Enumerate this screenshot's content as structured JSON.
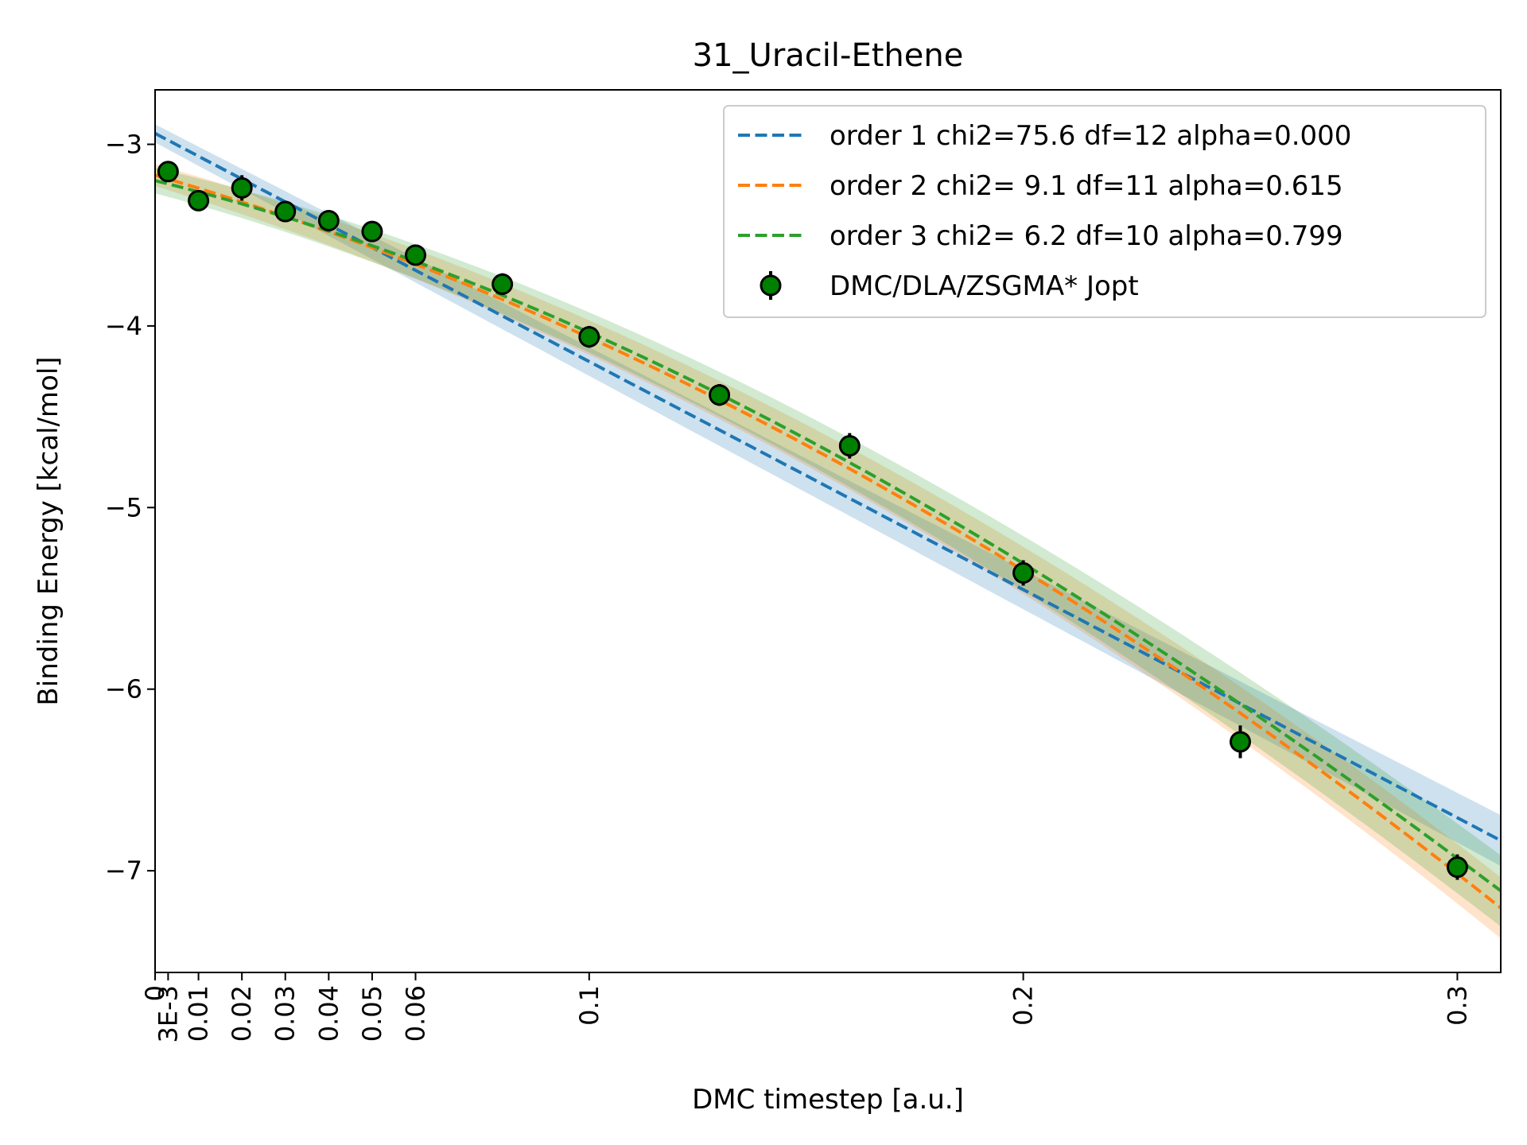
{
  "chart_data": {
    "type": "scatter",
    "title": "31_Uracil-Ethene",
    "xlabel": "DMC timestep [a.u.]",
    "ylabel": "Binding Energy [kcal/mol]",
    "xlim": [
      0,
      0.31
    ],
    "ylim": [
      -7.56,
      -2.7
    ],
    "x_ticks": [
      {
        "value": 0,
        "label": "0"
      },
      {
        "value": 0.003,
        "label": "3E-3"
      },
      {
        "value": 0.01,
        "label": "0.01"
      },
      {
        "value": 0.02,
        "label": "0.02"
      },
      {
        "value": 0.03,
        "label": "0.03"
      },
      {
        "value": 0.04,
        "label": "0.04"
      },
      {
        "value": 0.05,
        "label": "0.05"
      },
      {
        "value": 0.06,
        "label": "0.06"
      },
      {
        "value": 0.1,
        "label": "0.1"
      },
      {
        "value": 0.2,
        "label": "0.2"
      },
      {
        "value": 0.3,
        "label": "0.3"
      }
    ],
    "y_ticks": [
      {
        "value": -3,
        "label": "−3"
      },
      {
        "value": -4,
        "label": "−4"
      },
      {
        "value": -5,
        "label": "−5"
      },
      {
        "value": -6,
        "label": "−6"
      },
      {
        "value": -7,
        "label": "−7"
      }
    ],
    "grid": false,
    "legend_position": "top-right",
    "points": {
      "name": "DMC/DLA/ZSGMA* Jopt",
      "color": "#008000",
      "x": [
        0.003,
        0.01,
        0.02,
        0.03,
        0.04,
        0.05,
        0.06,
        0.08,
        0.1,
        0.13,
        0.16,
        0.2,
        0.25,
        0.3
      ],
      "y": [
        -3.15,
        -3.31,
        -3.24,
        -3.37,
        -3.42,
        -3.48,
        -3.61,
        -3.77,
        -4.06,
        -4.38,
        -4.66,
        -5.36,
        -6.29,
        -6.98
      ],
      "err": [
        0.05,
        0.05,
        0.07,
        0.05,
        0.05,
        0.05,
        0.05,
        0.06,
        0.06,
        0.06,
        0.07,
        0.07,
        0.09,
        0.07
      ]
    },
    "fits": [
      {
        "name": "order 1 chi2=75.6 df=12 alpha=0.000",
        "color": "#1f77b4",
        "coefficients": [
          -2.94,
          -12.56
        ],
        "band": 0.05
      },
      {
        "name": "order 2 chi2= 9.1 df=11 alpha=0.615",
        "color": "#ff7f0e",
        "coefficients": [
          -3.17,
          -7.0,
          -19.4
        ],
        "band": 0.06
      },
      {
        "name": "order 3 chi2= 6.2 df=10 alpha=0.799",
        "color": "#2ca02c",
        "coefficients": [
          -3.2,
          -5.9,
          -26.0,
          14.0
        ],
        "band": 0.07
      }
    ]
  }
}
